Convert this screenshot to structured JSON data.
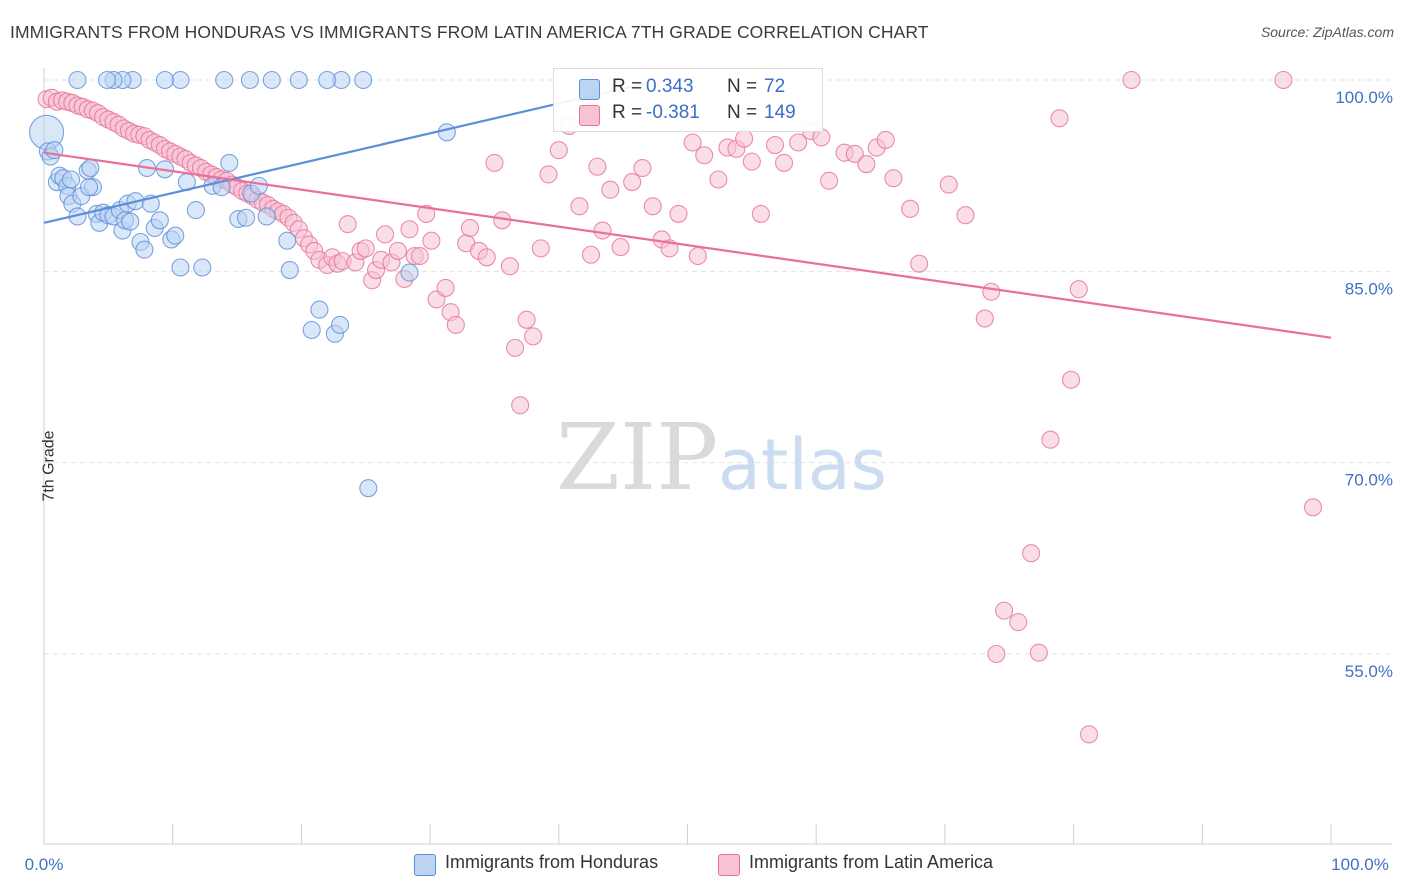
{
  "title": "IMMIGRANTS FROM HONDURAS VS IMMIGRANTS FROM LATIN AMERICA 7TH GRADE CORRELATION CHART",
  "source": "Source: ZipAtlas.com",
  "watermark": {
    "zip": "ZIP",
    "atlas": "atlas"
  },
  "colors": {
    "blue": "#5b8fd8",
    "blue_fill": "#bcd3f2",
    "pink": "#e8709a",
    "pink_fill": "#f6c3d4",
    "grid": "#e3e3e3",
    "axis_label": "#3f72c4"
  },
  "legend_top": {
    "rows": [
      {
        "r_label": "R =",
        "r_value": "0.343",
        "n_label": "N =",
        "n_value": "72"
      },
      {
        "r_label": "R =",
        "r_value": "-0.381",
        "n_label": "N =",
        "n_value": "149"
      }
    ]
  },
  "legend_bottom": {
    "items": [
      "Immigrants from Honduras",
      "Immigrants from Latin America"
    ]
  },
  "chart_data": {
    "type": "scatter",
    "xlabel": "",
    "ylabel": "7th Grade",
    "xlim": [
      0,
      100
    ],
    "ylim": [
      40,
      102.5
    ],
    "x_tick_labels": [
      "0.0%",
      "100.0%"
    ],
    "y_tick_labels": [
      "100.0%",
      "85.0%",
      "70.0%",
      "55.0%"
    ],
    "y_ticks": [
      100,
      85,
      70,
      55
    ],
    "grid": true,
    "series": [
      {
        "name": "Immigrants from Honduras",
        "color": "#5b8fd8",
        "trend": {
          "x0": 0,
          "y0": 88.8,
          "x1": 47,
          "y1": 99.8
        },
        "points": [
          [
            0.2,
            95.9,
            "big"
          ],
          [
            0.3,
            94.4
          ],
          [
            0.5,
            94.0
          ],
          [
            0.8,
            94.5
          ],
          [
            1.0,
            92.0
          ],
          [
            1.2,
            92.5
          ],
          [
            1.5,
            92.3
          ],
          [
            1.8,
            91.7
          ],
          [
            2.1,
            92.2
          ],
          [
            1.9,
            90.9
          ],
          [
            2.2,
            90.3
          ],
          [
            2.6,
            89.3
          ],
          [
            2.9,
            90.9
          ],
          [
            3.4,
            92.9
          ],
          [
            3.6,
            93.1
          ],
          [
            3.8,
            91.6
          ],
          [
            3.5,
            91.6
          ],
          [
            4.1,
            89.5
          ],
          [
            4.3,
            88.8
          ],
          [
            4.6,
            89.6
          ],
          [
            5.0,
            89.4
          ],
          [
            5.4,
            89.3
          ],
          [
            5.9,
            89.8
          ],
          [
            6.1,
            88.2
          ],
          [
            6.3,
            89.0
          ],
          [
            6.5,
            90.3
          ],
          [
            6.7,
            88.9
          ],
          [
            7.1,
            90.5
          ],
          [
            7.5,
            87.3
          ],
          [
            7.8,
            86.7
          ],
          [
            8.0,
            93.1
          ],
          [
            8.3,
            90.3
          ],
          [
            8.6,
            88.4
          ],
          [
            9.0,
            89.0
          ],
          [
            9.4,
            93.0
          ],
          [
            9.9,
            87.5
          ],
          [
            10.2,
            87.8
          ],
          [
            10.6,
            85.3
          ],
          [
            11.1,
            92.0
          ],
          [
            11.8,
            89.8
          ],
          [
            12.3,
            85.3
          ],
          [
            13.1,
            91.7
          ],
          [
            13.8,
            91.6
          ],
          [
            14.4,
            93.5
          ],
          [
            15.1,
            89.1
          ],
          [
            15.7,
            89.2
          ],
          [
            16.1,
            91.1
          ],
          [
            16.7,
            91.7
          ],
          [
            17.3,
            89.3
          ],
          [
            18.9,
            87.4
          ],
          [
            19.1,
            85.1
          ],
          [
            20.8,
            80.4
          ],
          [
            21.4,
            82.0
          ],
          [
            22.6,
            80.1
          ],
          [
            23.0,
            80.8
          ],
          [
            25.2,
            68.0
          ],
          [
            28.4,
            84.9
          ],
          [
            31.3,
            95.9
          ],
          [
            24.8,
            100.0
          ],
          [
            23.1,
            100.0
          ],
          [
            22.0,
            100.0
          ],
          [
            19.8,
            100.0
          ],
          [
            17.7,
            100.0
          ],
          [
            16.0,
            100.0
          ],
          [
            14.0,
            100.0
          ],
          [
            10.6,
            100.0
          ],
          [
            9.4,
            100.0
          ],
          [
            6.9,
            100.0
          ],
          [
            6.1,
            100.0
          ],
          [
            5.4,
            100.0
          ],
          [
            4.9,
            100.0
          ],
          [
            2.6,
            100.0
          ]
        ]
      },
      {
        "name": "Immigrants from Latin America",
        "color": "#e8709a",
        "trend": {
          "x0": 0,
          "y0": 94.3,
          "x1": 100,
          "y1": 79.8
        },
        "points": [
          [
            0.2,
            98.5
          ],
          [
            0.6,
            98.6
          ],
          [
            1.0,
            98.3
          ],
          [
            1.4,
            98.4
          ],
          [
            1.8,
            98.3
          ],
          [
            2.2,
            98.2
          ],
          [
            2.6,
            98.0
          ],
          [
            3.0,
            97.9
          ],
          [
            3.4,
            97.7
          ],
          [
            3.8,
            97.6
          ],
          [
            4.2,
            97.4
          ],
          [
            4.6,
            97.1
          ],
          [
            5.0,
            96.9
          ],
          [
            5.4,
            96.7
          ],
          [
            5.8,
            96.5
          ],
          [
            6.2,
            96.2
          ],
          [
            6.6,
            96.0
          ],
          [
            7.0,
            95.8
          ],
          [
            7.4,
            95.7
          ],
          [
            7.8,
            95.6
          ],
          [
            8.2,
            95.3
          ],
          [
            8.6,
            95.1
          ],
          [
            9.0,
            94.9
          ],
          [
            9.4,
            94.6
          ],
          [
            9.8,
            94.4
          ],
          [
            10.2,
            94.2
          ],
          [
            10.6,
            94.0
          ],
          [
            11.0,
            93.8
          ],
          [
            11.4,
            93.5
          ],
          [
            11.8,
            93.3
          ],
          [
            12.2,
            93.1
          ],
          [
            12.6,
            92.8
          ],
          [
            13.0,
            92.6
          ],
          [
            13.4,
            92.4
          ],
          [
            13.8,
            92.2
          ],
          [
            14.2,
            92.1
          ],
          [
            14.6,
            91.8
          ],
          [
            15.0,
            91.6
          ],
          [
            15.4,
            91.3
          ],
          [
            15.8,
            91.1
          ],
          [
            16.2,
            90.9
          ],
          [
            16.6,
            90.6
          ],
          [
            17.0,
            90.4
          ],
          [
            17.4,
            90.2
          ],
          [
            17.8,
            89.9
          ],
          [
            18.2,
            89.7
          ],
          [
            18.6,
            89.5
          ],
          [
            19.0,
            89.2
          ],
          [
            19.4,
            88.8
          ],
          [
            19.8,
            88.3
          ],
          [
            20.2,
            87.6
          ],
          [
            20.6,
            87.1
          ],
          [
            21.0,
            86.6
          ],
          [
            21.4,
            85.9
          ],
          [
            22.0,
            85.5
          ],
          [
            22.4,
            86.1
          ],
          [
            22.8,
            85.6
          ],
          [
            23.2,
            85.8
          ],
          [
            23.6,
            88.7
          ],
          [
            24.2,
            85.7
          ],
          [
            24.6,
            86.6
          ],
          [
            25.0,
            86.8
          ],
          [
            25.5,
            84.3
          ],
          [
            25.8,
            85.1
          ],
          [
            26.2,
            85.9
          ],
          [
            26.5,
            87.9
          ],
          [
            27.0,
            85.7
          ],
          [
            27.5,
            86.6
          ],
          [
            28.0,
            84.4
          ],
          [
            28.4,
            88.3
          ],
          [
            28.8,
            86.2
          ],
          [
            29.2,
            86.2
          ],
          [
            29.7,
            89.5
          ],
          [
            30.1,
            87.4
          ],
          [
            30.5,
            82.8
          ],
          [
            31.2,
            83.7
          ],
          [
            31.6,
            81.8
          ],
          [
            32.0,
            80.8
          ],
          [
            32.8,
            87.2
          ],
          [
            33.1,
            88.4
          ],
          [
            33.8,
            86.6
          ],
          [
            34.4,
            86.1
          ],
          [
            35.0,
            93.5
          ],
          [
            35.6,
            89.0
          ],
          [
            36.2,
            85.4
          ],
          [
            36.6,
            79.0
          ],
          [
            37.0,
            74.5
          ],
          [
            37.5,
            81.2
          ],
          [
            38.0,
            79.9
          ],
          [
            38.6,
            86.8
          ],
          [
            39.2,
            92.6
          ],
          [
            40.0,
            94.5
          ],
          [
            40.8,
            96.4
          ],
          [
            41.6,
            90.1
          ],
          [
            42.5,
            86.3
          ],
          [
            43.4,
            88.2
          ],
          [
            44.0,
            91.4
          ],
          [
            44.8,
            86.9
          ],
          [
            45.7,
            92.0
          ],
          [
            46.5,
            93.1
          ],
          [
            47.3,
            90.1
          ],
          [
            48.0,
            87.5
          ],
          [
            48.6,
            86.8
          ],
          [
            49.3,
            89.5
          ],
          [
            50.4,
            95.1
          ],
          [
            51.3,
            94.1
          ],
          [
            52.4,
            92.2
          ],
          [
            53.1,
            94.7
          ],
          [
            53.8,
            94.6
          ],
          [
            54.4,
            95.4
          ],
          [
            55.0,
            93.6
          ],
          [
            55.7,
            89.5
          ],
          [
            56.8,
            94.9
          ],
          [
            57.5,
            93.5
          ],
          [
            58.6,
            95.1
          ],
          [
            59.6,
            96.0
          ],
          [
            60.4,
            95.5
          ],
          [
            61.0,
            92.1
          ],
          [
            62.2,
            94.3
          ],
          [
            63.0,
            94.2
          ],
          [
            63.9,
            93.4
          ],
          [
            64.7,
            94.7
          ],
          [
            65.4,
            95.3
          ],
          [
            66.0,
            92.3
          ],
          [
            67.3,
            89.9
          ],
          [
            68.0,
            85.6
          ],
          [
            70.3,
            91.8
          ],
          [
            71.6,
            89.4
          ],
          [
            73.1,
            81.3
          ],
          [
            73.6,
            83.4
          ],
          [
            74.0,
            55.0
          ],
          [
            74.6,
            58.4
          ],
          [
            75.7,
            57.5
          ],
          [
            76.7,
            62.9
          ],
          [
            77.3,
            55.1
          ],
          [
            78.2,
            71.8
          ],
          [
            78.9,
            97.0
          ],
          [
            79.8,
            76.5
          ],
          [
            80.4,
            83.6
          ],
          [
            81.2,
            48.7
          ],
          [
            84.5,
            100.0
          ],
          [
            96.3,
            100.0
          ],
          [
            98.6,
            66.5
          ],
          [
            50.8,
            86.2
          ],
          [
            43.0,
            93.2
          ]
        ]
      }
    ]
  }
}
